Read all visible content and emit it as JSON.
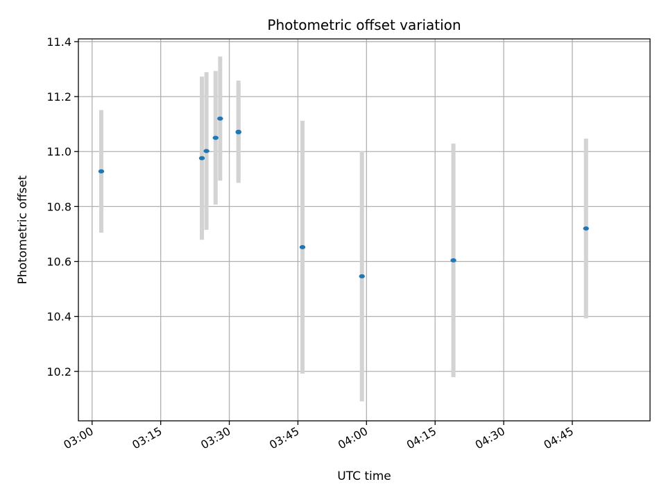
{
  "chart_data": {
    "type": "scatter",
    "title": "Photometric offset variation",
    "xlabel": "UTC time",
    "ylabel": "Photometric offset",
    "grid": true,
    "x_tick_labels": [
      "03:00",
      "03:15",
      "03:30",
      "03:45",
      "04:00",
      "04:15",
      "04:30",
      "04:45"
    ],
    "y_tick_labels": [
      "10.2",
      "10.4",
      "10.6",
      "10.8",
      "11.0",
      "11.2",
      "11.4"
    ],
    "xlim": [
      "02:57",
      "05:02"
    ],
    "ylim": [
      10.02,
      11.41
    ],
    "colors": {
      "point": "#1f77b4",
      "errorbar": "#d3d3d3",
      "grid": "#b0b0b0"
    },
    "points": [
      {
        "x": "03:02",
        "y": 10.928,
        "err": 0.223
      },
      {
        "x": "03:24",
        "y": 10.976,
        "err": 0.297
      },
      {
        "x": "03:25",
        "y": 11.002,
        "err": 0.287
      },
      {
        "x": "03:27",
        "y": 11.05,
        "err": 0.243
      },
      {
        "x": "03:28",
        "y": 11.12,
        "err": 0.226
      },
      {
        "x": "03:32",
        "y": 11.072,
        "err": 0.186
      },
      {
        "x": "03:32",
        "y": 11.07,
        "err": 0.178
      },
      {
        "x": "03:46",
        "y": 10.652,
        "err": 0.46
      },
      {
        "x": "03:59",
        "y": 10.546,
        "err": 0.455
      },
      {
        "x": "04:19",
        "y": 10.604,
        "err": 0.425
      },
      {
        "x": "04:48",
        "y": 10.72,
        "err": 0.327
      }
    ]
  }
}
